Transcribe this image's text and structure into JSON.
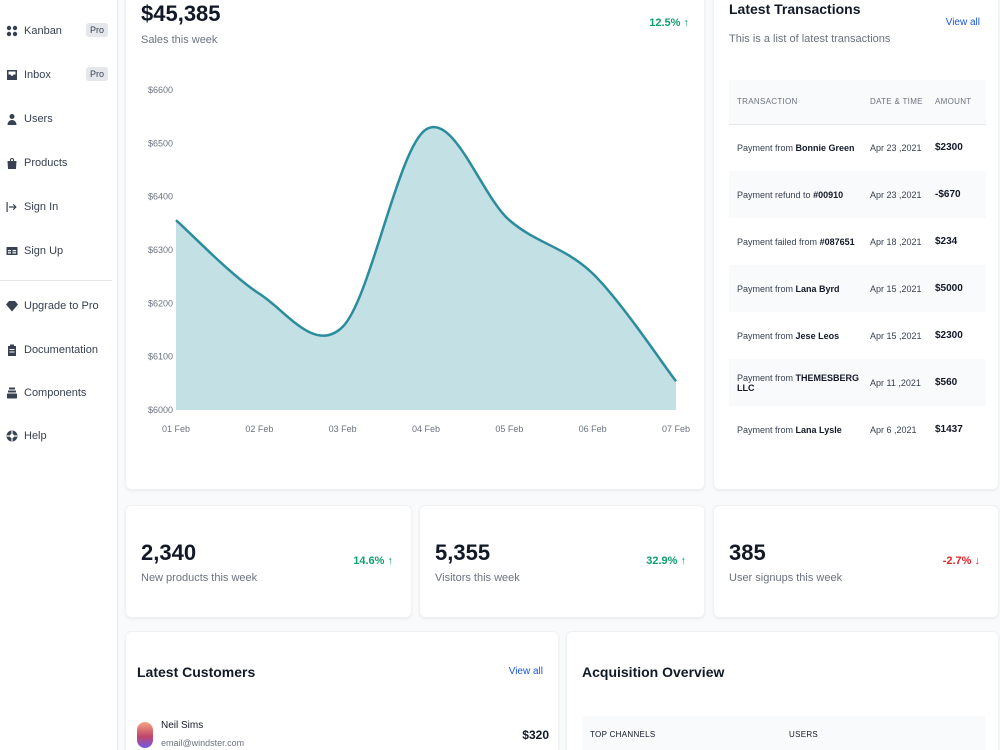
{
  "sidebar": {
    "items": [
      {
        "label": "Kanban",
        "badge": "Pro",
        "icon": "grid-icon"
      },
      {
        "label": "Inbox",
        "badge": "Pro",
        "icon": "inbox-icon"
      },
      {
        "label": "Users",
        "icon": "user-icon"
      },
      {
        "label": "Products",
        "icon": "bag-icon"
      },
      {
        "label": "Sign In",
        "icon": "sign-in-icon"
      },
      {
        "label": "Sign Up",
        "icon": "id-card-icon"
      }
    ],
    "secondary": [
      {
        "label": "Upgrade to Pro",
        "icon": "gem-icon"
      },
      {
        "label": "Documentation",
        "icon": "clipboard-icon"
      },
      {
        "label": "Components",
        "icon": "stack-icon"
      },
      {
        "label": "Help",
        "icon": "lifebuoy-icon"
      }
    ]
  },
  "sales": {
    "value": "$45,385",
    "subtitle": "Sales this week",
    "trend": "12.5%",
    "trend_direction": "up"
  },
  "chart_data": {
    "type": "area",
    "x": [
      "01 Feb",
      "02 Feb",
      "03 Feb",
      "04 Feb",
      "05 Feb",
      "06 Feb",
      "07 Feb"
    ],
    "series": [
      {
        "values": [
          6356,
          6218,
          6156,
          6526,
          6356,
          6256,
          6054
        ]
      }
    ],
    "y_ticks": [
      "$6600",
      "$6500",
      "$6400",
      "$6300",
      "$6200",
      "$6100",
      "$6000"
    ],
    "ylim": [
      6000,
      6600
    ],
    "color": "#2a8c9c",
    "fill_color": "#c3e0e4"
  },
  "transactions": {
    "title": "Latest Transactions",
    "subtitle": "This is a list of latest transactions",
    "view_all": "View all",
    "headers": [
      "TRANSACTION",
      "DATE & TIME",
      "AMOUNT"
    ],
    "rows": [
      {
        "prefix": "Payment from",
        "name": "Bonnie Green",
        "date": "Apr 23 ,2021",
        "amount": "$2300"
      },
      {
        "prefix": "Payment refund to",
        "name": "#00910",
        "date": "Apr 23 ,2021",
        "amount": "-$670"
      },
      {
        "prefix": "Payment failed from",
        "name": "#087651",
        "date": "Apr 18 ,2021",
        "amount": "$234"
      },
      {
        "prefix": "Payment from",
        "name": "Lana Byrd",
        "date": "Apr 15 ,2021",
        "amount": "$5000"
      },
      {
        "prefix": "Payment from",
        "name": "Jese Leos",
        "date": "Apr 15 ,2021",
        "amount": "$2300"
      },
      {
        "prefix": "Payment from",
        "name": "THEMESBERG LLC",
        "date": "Apr 11 ,2021",
        "amount": "$560"
      },
      {
        "prefix": "Payment from",
        "name": "Lana Lysle",
        "date": "Apr 6 ,2021",
        "amount": "$1437"
      }
    ]
  },
  "stats": [
    {
      "value": "2,340",
      "label": "New products this week",
      "trend": "14.6%",
      "direction": "up"
    },
    {
      "value": "5,355",
      "label": "Visitors this week",
      "trend": "32.9%",
      "direction": "up"
    },
    {
      "value": "385",
      "label": "User signups this week",
      "trend": "-2.7%",
      "direction": "down"
    }
  ],
  "customers": {
    "title": "Latest Customers",
    "view_all": "View all",
    "rows": [
      {
        "name": "Neil Sims",
        "email": "email@windster.com",
        "amount": "$320"
      }
    ]
  },
  "acquisition": {
    "title": "Acquisition Overview",
    "headers": [
      "TOP CHANNELS",
      "USERS"
    ]
  }
}
